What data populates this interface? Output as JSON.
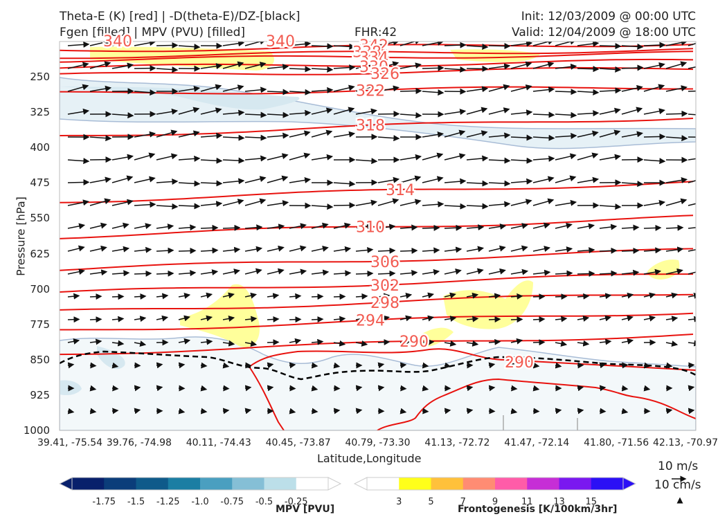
{
  "header": {
    "title_left_1": "Theta-E (K) [red] | -D(theta-E)/DZ-[black]",
    "title_left_2": "Fgen [filled] | MPV (PVU) [filled]",
    "fhr": "FHR:42",
    "init": "Init: 12/03/2009 @ 00:00 UTC",
    "valid": "Valid: 12/04/2009 @ 18:00 UTC"
  },
  "chart_data": {
    "type": "cross-section",
    "ylabel": "Pressure [hPa]",
    "xlabel": "Latitude,Longitude",
    "y_ticks": [
      "250",
      "325",
      "400",
      "475",
      "550",
      "625",
      "700",
      "775",
      "850",
      "925",
      "1000"
    ],
    "x_ticks": [
      "39.41, -75.54",
      "39.76, -74.98",
      "40.11, -74.43",
      "40.45, -73.87",
      "40.79, -73.30",
      "41.13, -72.72",
      "41.47, -72.14",
      "41.80, -71.56",
      "42.13, -70.97"
    ],
    "ylim": [
      1000,
      175
    ],
    "theta_e_contours": [
      {
        "level": "342",
        "pressure": 185
      },
      {
        "level": "338",
        "pressure": 198
      },
      {
        "level": "334",
        "pressure": 206
      },
      {
        "level": "330",
        "pressure": 222
      },
      {
        "level": "326",
        "pressure": 238
      },
      {
        "level": "322",
        "pressure": 277
      },
      {
        "level": "318",
        "pressure": 367
      },
      {
        "level": "314",
        "pressure": 505
      },
      {
        "level": "310",
        "pressure": 580
      },
      {
        "level": "306",
        "pressure": 650
      },
      {
        "level": "302",
        "pressure": 700
      },
      {
        "level": "298",
        "pressure": 740
      },
      {
        "level": "294",
        "pressure": 780
      },
      {
        "level": "290",
        "pressure": 828
      }
    ],
    "extra_contour_labels": [
      "340",
      "340",
      "290"
    ],
    "mpv_colorbar": {
      "label": "MPV [PVU]",
      "ticks": [
        "-1.75",
        "-1.5",
        "-1.25",
        "-1.0",
        "-0.75",
        "-0.5",
        "-0.25"
      ],
      "colors": [
        "#08206b",
        "#0b3d7a",
        "#0f5a8a",
        "#1b7ea3",
        "#4a9fc0",
        "#85bfd6",
        "#bcdfe9",
        "#ffffff"
      ]
    },
    "fgen_colorbar": {
      "label": "Frontogenesis [K/100km/3hr]",
      "ticks": [
        "3",
        "5",
        "7",
        "9",
        "11",
        "13",
        "15"
      ],
      "colors": [
        "#ffffff",
        "#ffff1a",
        "#ffc13b",
        "#ff8c73",
        "#ff5ca8",
        "#c62ed6",
        "#7a18f0",
        "#2b10f5"
      ]
    },
    "vector_legend": [
      "10 m/s",
      "10 cm/s"
    ],
    "grid": false
  }
}
